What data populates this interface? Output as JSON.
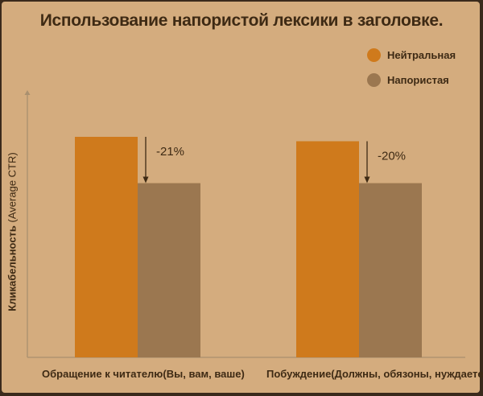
{
  "chart_data": {
    "type": "bar",
    "title": "Использование напористой лексики в заголовке.",
    "ylabel_main": "Кликабельность",
    "ylabel_unit": "(Average CTR)",
    "categories": [
      "Обращение к читателю(Вы, вам, ваше)",
      "Побуждение(Должны, обязоны, нуждаетесь)"
    ],
    "series": [
      {
        "name": "Нейтральная",
        "values": [
          100,
          98
        ],
        "color": "#cf7a1c"
      },
      {
        "name": "Напористая",
        "values": [
          79,
          79
        ],
        "color": "#9b7750"
      }
    ],
    "annotations": [
      "-21%",
      "-20%"
    ],
    "ylim": [
      0,
      124
    ],
    "grid": false,
    "legend_position": "top-right"
  }
}
